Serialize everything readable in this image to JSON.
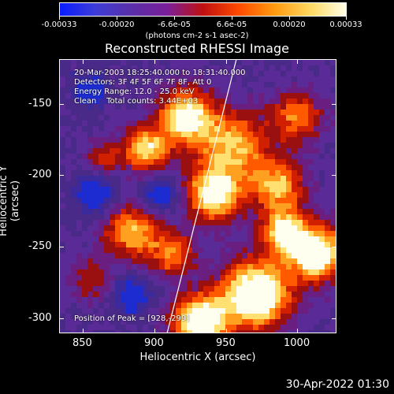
{
  "colorbar": {
    "tick_labels": [
      "-0.00033",
      "-0.00020",
      "-6.6e-05",
      "6.6e-05",
      "0.00020",
      "0.00033"
    ],
    "units": "(photons cm-2 s-1 asec-2)",
    "colors": [
      "#0a1cff",
      "#3d3dd6",
      "#5a2fa8",
      "#7a1f9a",
      "#c01010",
      "#ff4a00",
      "#ff9a10",
      "#ffd860",
      "#ffffe8"
    ]
  },
  "title": "Reconstructed RHESSI Image",
  "info": {
    "line1": "20-Mar-2003 18:25:40.000 to 18:31:40.000",
    "line2": "Detectors: 3F 4F 5F 6F 7F 8F, Att 0",
    "line3": "Energy Range: 12.0 - 25.0 keV",
    "line4": "Clean    Total counts: 3.44E+03",
    "peak": "Position of Peak = [928,-299]"
  },
  "axes": {
    "xlabel": "Heliocentric X (arcsec)",
    "ylabel": "Heliocentric Y (arcsec)",
    "x_ticks": [
      "850",
      "900",
      "950",
      "1000"
    ],
    "y_ticks": [
      "-150",
      "-200",
      "-250",
      "-300"
    ]
  },
  "timestamp": "30-Apr-2022 01:30"
}
